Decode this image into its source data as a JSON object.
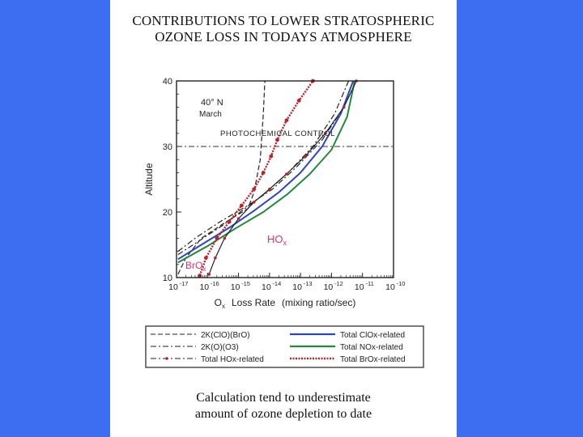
{
  "slide": {
    "background_color": "#3d6ef2",
    "title_line1": "CONTRIBUTIONS TO LOWER STRATOSPHERIC",
    "title_line2": "OZONE LOSS IN TODAYS ATMOSPHERE",
    "caption_line1": "Calculation tend to underestimate",
    "caption_line2": "amount of ozone depletion to date"
  },
  "chart_data": {
    "type": "line",
    "x_scale": "log",
    "xlim_exponents": [
      -17,
      -10
    ],
    "x_tick_labels": [
      "10",
      "10",
      "10",
      "10",
      "10",
      "10",
      "10",
      "10"
    ],
    "x_tick_exponents": [
      "-17",
      "-16",
      "-15",
      "-14",
      "-13",
      "-12",
      "-11",
      "-10"
    ],
    "ylim": [
      10,
      40
    ],
    "y_ticks": [
      10,
      20,
      30,
      40
    ],
    "y_tick_labels": [
      "10",
      "20",
      "30",
      "40"
    ],
    "ylabel": "Altitude",
    "xlabel_parts": [
      "O",
      "x",
      "Loss Rate",
      "(mixing ratio/sec)"
    ],
    "annotations": {
      "location_line1": "40° N",
      "location_line2": "March",
      "region_label": "PHOTOCHEMICAL CONTROL",
      "hox_label": "HO",
      "hox_sub": "x",
      "brox_label": "BrO",
      "brox_sub": "x"
    },
    "reference_line_altitude": 30,
    "series": [
      {
        "key": "clo_bro",
        "name": "2K(ClO)(BrO)",
        "color": "#222222",
        "style": "dash",
        "x": [
          -16.95,
          -16.7,
          -16.2,
          -15.4,
          -14.7,
          -14.5,
          -14.3,
          -14.2,
          -14.15
        ],
        "y": [
          10.5,
          13,
          16,
          18.5,
          20.5,
          23,
          28,
          35,
          40
        ]
      },
      {
        "key": "o_o3",
        "name": "2K(O)(O3)",
        "color": "#222222",
        "style": "dashdot",
        "x": [
          -16.95,
          -16.4,
          -15.6,
          -14.7,
          -13.9,
          -13.1,
          -12.3,
          -11.6,
          -11.2
        ],
        "y": [
          14,
          16,
          18.5,
          21,
          23.5,
          27,
          31,
          36,
          40
        ]
      },
      {
        "key": "hox",
        "name": "Total HOx-related",
        "color": "#222222",
        "style": "dashdot",
        "x": [
          -16.95,
          -16.3,
          -15.5,
          -14.8,
          -14.1,
          -13.4,
          -12.6,
          -11.9,
          -11.45
        ],
        "y": [
          13.5,
          15.5,
          18,
          20.5,
          23,
          26,
          30,
          35,
          40
        ]
      },
      {
        "key": "clox",
        "name": "Total ClOx-related",
        "color": "#2b45c9",
        "style": "solid",
        "x": [
          -16.95,
          -16.2,
          -15.3,
          -14.5,
          -13.7,
          -13,
          -12.3,
          -11.7,
          -11.3
        ],
        "y": [
          12.8,
          15,
          17.6,
          20.2,
          23,
          26,
          30,
          35,
          40
        ]
      },
      {
        "key": "nox",
        "name": "Total NOx-related",
        "color": "#1f8a3c",
        "style": "solid",
        "x": [
          -16.95,
          -16,
          -15.1,
          -14.2,
          -13.4,
          -12.7,
          -12,
          -11.5,
          -11.25
        ],
        "y": [
          12.3,
          14.8,
          17.5,
          20,
          22.8,
          25.8,
          29.5,
          34.5,
          40
        ]
      },
      {
        "key": "brox",
        "name": "Total BrOx-related",
        "color": "#c0202a",
        "style": "dotted",
        "x": [
          -16.25,
          -16.05,
          -15.7,
          -15.3,
          -14.9,
          -14.5,
          -14.2,
          -13.95,
          -13.75,
          -13.45,
          -13.05,
          -12.6
        ],
        "y": [
          10.3,
          13,
          16,
          18.5,
          21,
          23.5,
          26,
          28.5,
          31,
          34,
          37,
          40
        ]
      },
      {
        "key": "hox_curve",
        "name": "",
        "color": "#222222",
        "style": "solid-dots",
        "x": [
          -15.95,
          -15.75,
          -15.45,
          -15.0,
          -14.5,
          -14.0,
          -13.45,
          -12.85,
          -12.2,
          -11.6,
          -11.2
        ],
        "y": [
          10.5,
          13,
          16,
          19,
          21.5,
          23.5,
          25.8,
          28.5,
          32,
          36,
          40
        ]
      }
    ],
    "legend": [
      {
        "series": "clo_bro",
        "label": "2K(ClO)(BrO)"
      },
      {
        "series": "o_o3",
        "label": "2K(O)(O3)"
      },
      {
        "series": "hox",
        "label": "Total HOx-related"
      },
      {
        "series": "clox",
        "label": "Total ClOx-related"
      },
      {
        "series": "nox",
        "label": "Total NOx-related"
      },
      {
        "series": "brox",
        "label": "Total BrOx-related"
      }
    ]
  }
}
